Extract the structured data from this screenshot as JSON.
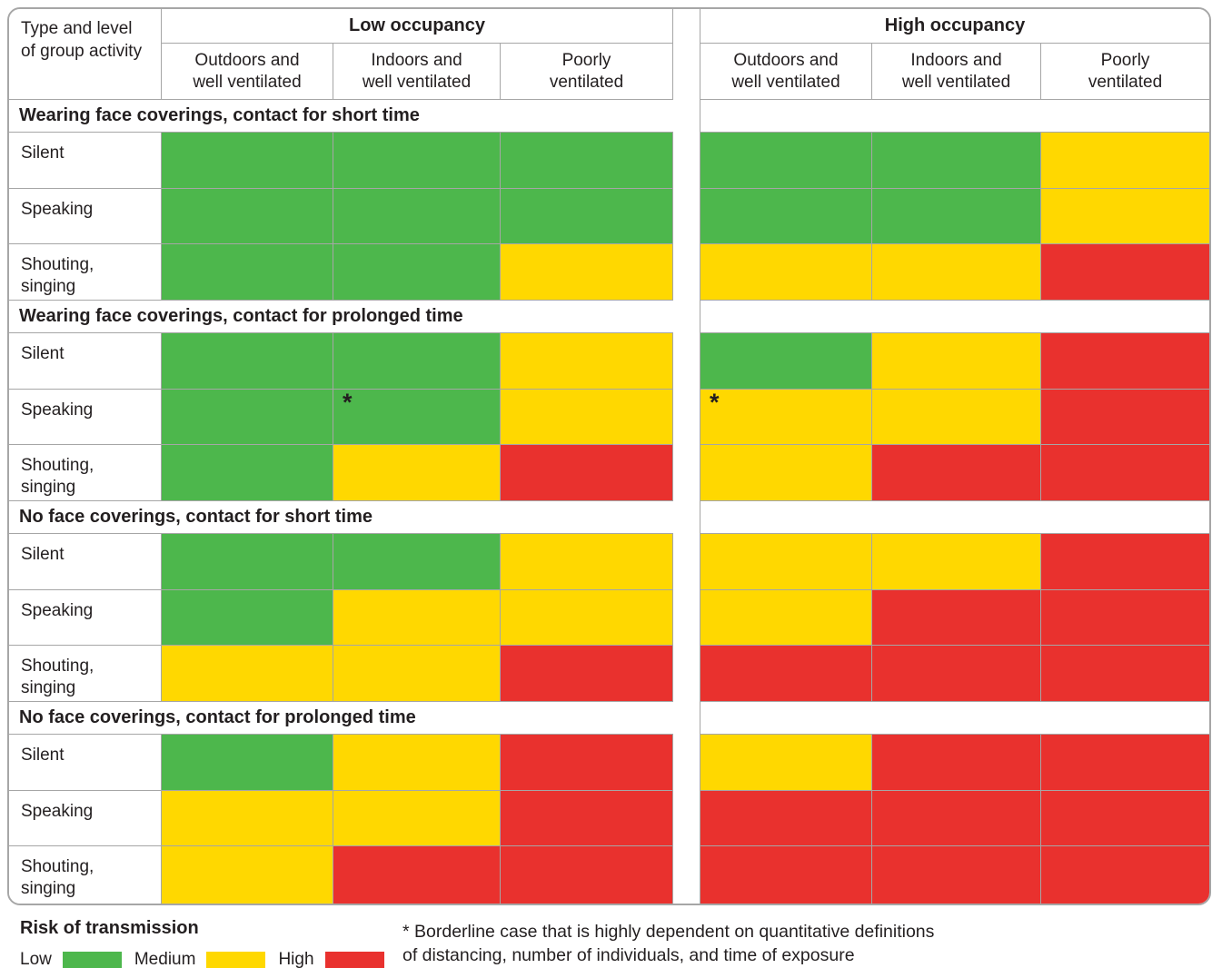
{
  "chart_data": {
    "type": "heatmap",
    "corner_header": "Type and level\nof group activity",
    "column_groups": [
      {
        "label": "Low occupancy",
        "columns": [
          "Outdoors and\nwell ventilated",
          "Indoors and\nwell ventilated",
          "Poorly\nventilated"
        ]
      },
      {
        "label": "High occupancy",
        "columns": [
          "Outdoors and\nwell ventilated",
          "Indoors and\nwell ventilated",
          "Poorly\nventilated"
        ]
      }
    ],
    "risk_levels": [
      {
        "id": "low",
        "label": "Low",
        "color": "#4DB74C"
      },
      {
        "id": "medium",
        "label": "Medium",
        "color": "#FFD800"
      },
      {
        "id": "high",
        "label": "High",
        "color": "#E9312E"
      }
    ],
    "legend_title": "Risk of transmission",
    "sections": [
      {
        "title": "Wearing face coverings, contact for short time",
        "rows": [
          {
            "label": "Silent",
            "low_occupancy": [
              "low",
              "low",
              "low"
            ],
            "high_occupancy": [
              "low",
              "low",
              "medium"
            ]
          },
          {
            "label": "Speaking",
            "low_occupancy": [
              "low",
              "low",
              "low"
            ],
            "high_occupancy": [
              "low",
              "low",
              "medium"
            ]
          },
          {
            "label": "Shouting,\nsinging",
            "low_occupancy": [
              "low",
              "low",
              "medium"
            ],
            "high_occupancy": [
              "medium",
              "medium",
              "high"
            ]
          }
        ]
      },
      {
        "title": "Wearing face coverings, contact for prolonged time",
        "rows": [
          {
            "label": "Silent",
            "low_occupancy": [
              "low",
              "low",
              "medium"
            ],
            "high_occupancy": [
              "low",
              "medium",
              "high"
            ]
          },
          {
            "label": "Speaking",
            "low_occupancy": [
              "low",
              "low*",
              "medium"
            ],
            "high_occupancy": [
              "medium*",
              "medium",
              "high"
            ]
          },
          {
            "label": "Shouting,\nsinging",
            "low_occupancy": [
              "low",
              "medium",
              "high"
            ],
            "high_occupancy": [
              "medium",
              "high",
              "high"
            ]
          }
        ]
      },
      {
        "title": "No face coverings, contact for short time",
        "rows": [
          {
            "label": "Silent",
            "low_occupancy": [
              "low",
              "low",
              "medium"
            ],
            "high_occupancy": [
              "medium",
              "medium",
              "high"
            ]
          },
          {
            "label": "Speaking",
            "low_occupancy": [
              "low",
              "medium",
              "medium"
            ],
            "high_occupancy": [
              "medium",
              "high",
              "high"
            ]
          },
          {
            "label": "Shouting,\nsinging",
            "low_occupancy": [
              "medium",
              "medium",
              "high"
            ],
            "high_occupancy": [
              "high",
              "high",
              "high"
            ]
          }
        ]
      },
      {
        "title": "No face coverings, contact for prolonged time",
        "rows": [
          {
            "label": "Silent",
            "low_occupancy": [
              "low",
              "medium",
              "high"
            ],
            "high_occupancy": [
              "medium",
              "high",
              "high"
            ]
          },
          {
            "label": "Speaking",
            "low_occupancy": [
              "medium",
              "medium",
              "high"
            ],
            "high_occupancy": [
              "high",
              "high",
              "high"
            ]
          },
          {
            "label": "Shouting,\nsinging",
            "low_occupancy": [
              "medium",
              "high",
              "high"
            ],
            "high_occupancy": [
              "high",
              "high",
              "high"
            ]
          }
        ]
      }
    ],
    "footnote_line1": "* Borderline case that is highly dependent on quantitative definitions",
    "footnote_line2": "of distancing, number of individuals, and time of exposure"
  }
}
